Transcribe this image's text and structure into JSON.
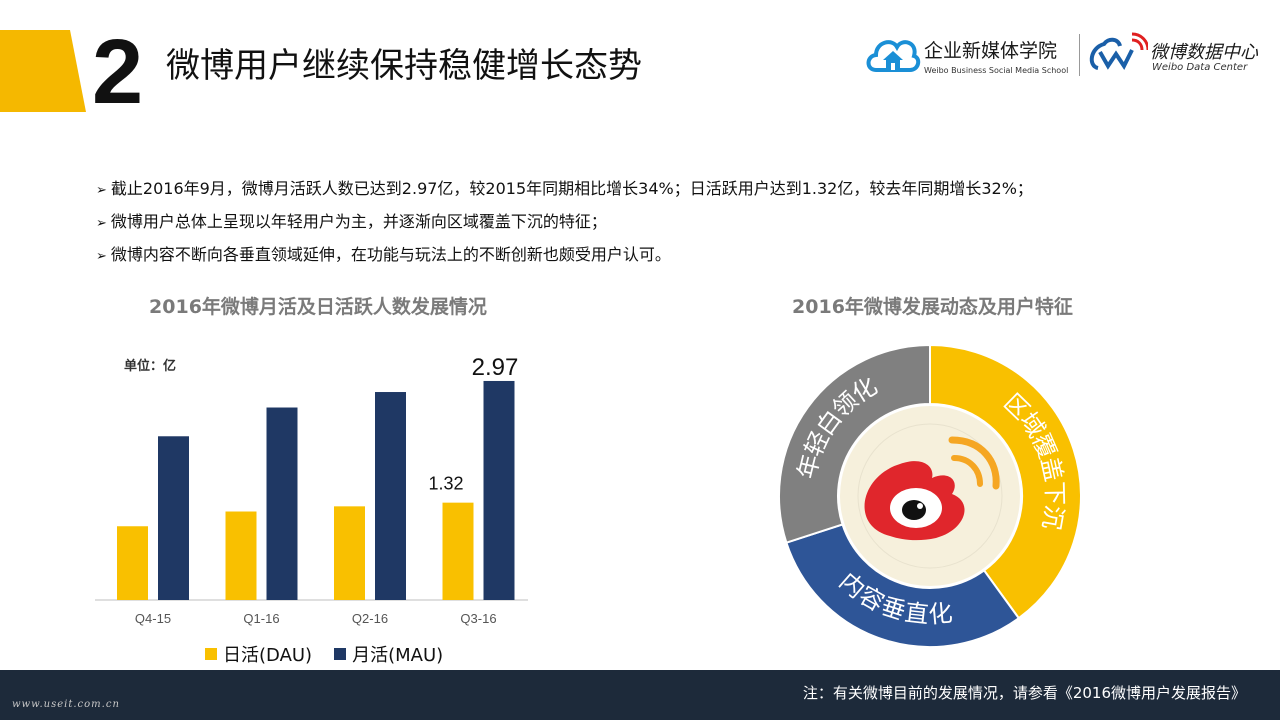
{
  "header": {
    "section_number": "2",
    "title": "微博用户继续保持稳健增长态势"
  },
  "logos": {
    "school_name": "企业新媒体学院",
    "school_sub": "Weibo Business Social Media School",
    "weibo_name": "微博数据中心",
    "weibo_sub": "Weibo Data Center"
  },
  "bullets": [
    "截止2016年9月，微博月活跃人数已达到2.97亿，较2015年同期相比增长34%；日活跃用户达到1.32亿，较去年同期增长32%；",
    "微博用户总体上呈现以年轻用户为主，并逐渐向区域覆盖下沉的特征；",
    "微博内容不断向各垂直领域延伸，在功能与玩法上的不断创新也颇受用户认可。"
  ],
  "left_chart": {
    "title": "2016年微博月活及日活跃人数发展情况",
    "unit": "单位：亿"
  },
  "right_chart": {
    "title": "2016年微博发展动态及用户特征"
  },
  "chart_data": [
    {
      "type": "bar",
      "categories": [
        "Q4-15",
        "Q1-16",
        "Q2-16",
        "Q3-16"
      ],
      "series": [
        {
          "name": "日活(DAU)",
          "values": [
            1.0,
            1.2,
            1.27,
            1.32
          ],
          "color": "#F9C000"
        },
        {
          "name": "月活(MAU)",
          "values": [
            2.22,
            2.61,
            2.82,
            2.97
          ],
          "color": "#1F3864"
        }
      ],
      "data_labels": [
        {
          "series": 0,
          "category": "Q3-16",
          "text": "1.32"
        },
        {
          "series": 1,
          "category": "Q3-16",
          "text": "2.97"
        }
      ],
      "ylim": [
        0,
        3.2
      ],
      "legend_position": "bottom",
      "grid": false
    },
    {
      "type": "pie",
      "donut": true,
      "categories": [
        "区域覆盖下沉",
        "内容垂直化",
        "年轻白领化"
      ],
      "values": [
        40,
        30,
        30
      ],
      "colors": [
        "#F9C000",
        "#2E5597",
        "#808080"
      ]
    }
  ],
  "legend": {
    "dau": "日活(DAU)",
    "mau": "月活(MAU)"
  },
  "footer": {
    "note": "注：有关微博目前的发展情况，请参看《2016微博用户发展报告》",
    "watermark": "www.useit.com.cn"
  },
  "colors": {
    "accent": "#F5B800",
    "dau": "#F9C000",
    "mau": "#1F3864",
    "footer": "#1d2a3a"
  }
}
